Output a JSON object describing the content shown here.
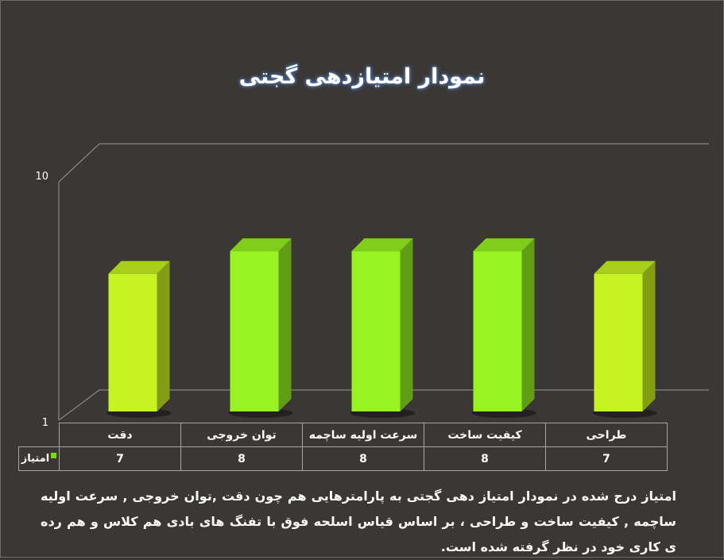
{
  "chart_data": {
    "type": "bar",
    "title": "نمودار امتیازدهی گجتی",
    "categories": [
      "دقت",
      "توان خروجی",
      "سرعت اولیه ساچمه",
      "کیفیت ساخت",
      "طراحی"
    ],
    "series": [
      {
        "name": "امتیاز",
        "values": [
          7,
          8,
          8,
          8,
          7
        ]
      }
    ],
    "value_labels": [
      "7",
      "8",
      "8",
      "8",
      "7"
    ],
    "ylim": [
      1,
      10
    ],
    "y_ticks": [
      "1",
      "10"
    ],
    "grid": true,
    "legend": "data-table",
    "colors": {
      "low": "#c6f321",
      "high": "#97f321",
      "background": "#3a3735"
    }
  },
  "caption": "امتیاز درج شده در نمودار امتیاز دهی گجتی  به پارامترهایی هم چون دقت ,توان خروجی , سرعت اولیه ساچمه , کیفیت ساخت و طراحی ، بر اساس قیاس اسلحه فوق با تفنگ های بادی هم کلاس و هم رده ی کاری خود در نظر گرفته شده است."
}
